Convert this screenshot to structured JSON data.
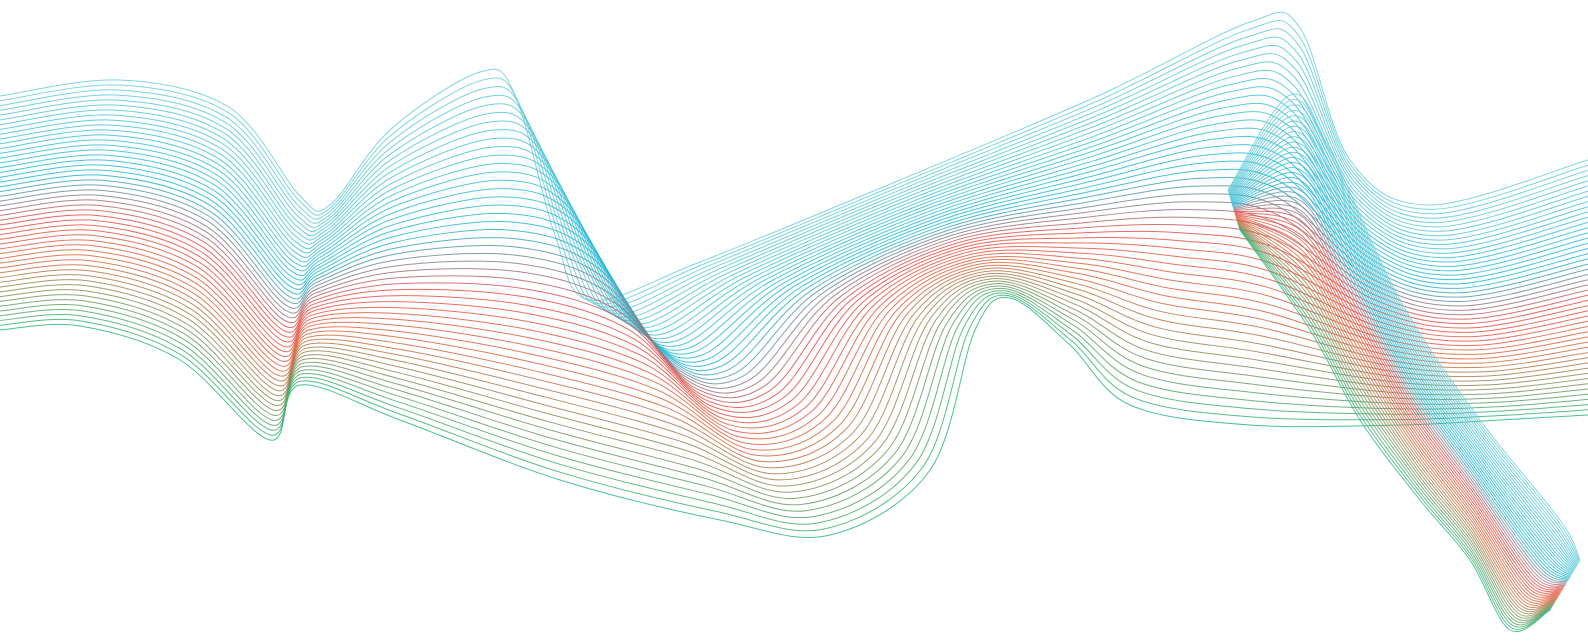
{
  "artwork": {
    "background_color": "#ffffff",
    "palette": {
      "cyan": "#1bb7d6",
      "red": "#ec4b45",
      "green": "#2cb87a"
    },
    "ribbons": [
      {
        "name": "main-wave-ribbon",
        "line_count": 50
      },
      {
        "name": "right-twisted-ribbon",
        "line_count": 46
      }
    ]
  }
}
